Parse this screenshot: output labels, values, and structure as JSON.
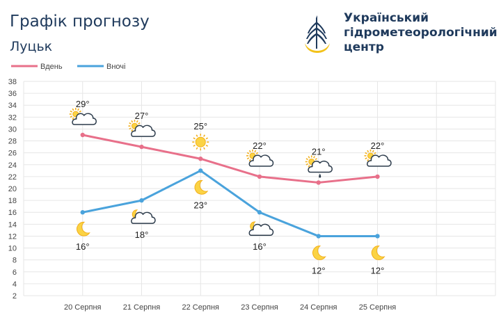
{
  "header": {
    "title": "Графік прогнозу",
    "city": "Луцьк",
    "org_line1": "Український",
    "org_line2": "гідрометеорологічний",
    "org_line3": "центр",
    "logo_icon": "water-drop-emblem-icon"
  },
  "colors": {
    "day": "#e8708a",
    "night": "#4aa3dc",
    "grid": "#e6e6e6",
    "brand": "#1f3a5c"
  },
  "chart_data": {
    "type": "line",
    "title": "",
    "xlabel": "",
    "ylabel": "",
    "categories": [
      "20 Серпня",
      "21 Серпня",
      "22 Серпня",
      "23 Серпня",
      "24 Серпня",
      "25 Серпня"
    ],
    "ylim": [
      2,
      38
    ],
    "ytick_step": 2,
    "grid": true,
    "legend_position": "top-left",
    "series": [
      {
        "name": "Вдень",
        "values": [
          29,
          27,
          25,
          22,
          21,
          22
        ],
        "labels": [
          "29°",
          "27°",
          "25°",
          "22°",
          "21°",
          "22°"
        ],
        "icons": [
          "partly-cloudy-icon",
          "partly-cloudy-icon",
          "sun-icon",
          "partly-cloudy-icon",
          "cloud-rain-icon",
          "partly-cloudy-icon"
        ]
      },
      {
        "name": "Вночі",
        "values": [
          16,
          18,
          23,
          16,
          12,
          12
        ],
        "labels": [
          "16°",
          "18°",
          "23°",
          "16°",
          "12°",
          "12°"
        ],
        "icons": [
          "moon-icon",
          "moon-cloud-icon",
          "moon-icon",
          "moon-cloud-icon",
          "moon-icon",
          "moon-icon"
        ]
      }
    ]
  }
}
